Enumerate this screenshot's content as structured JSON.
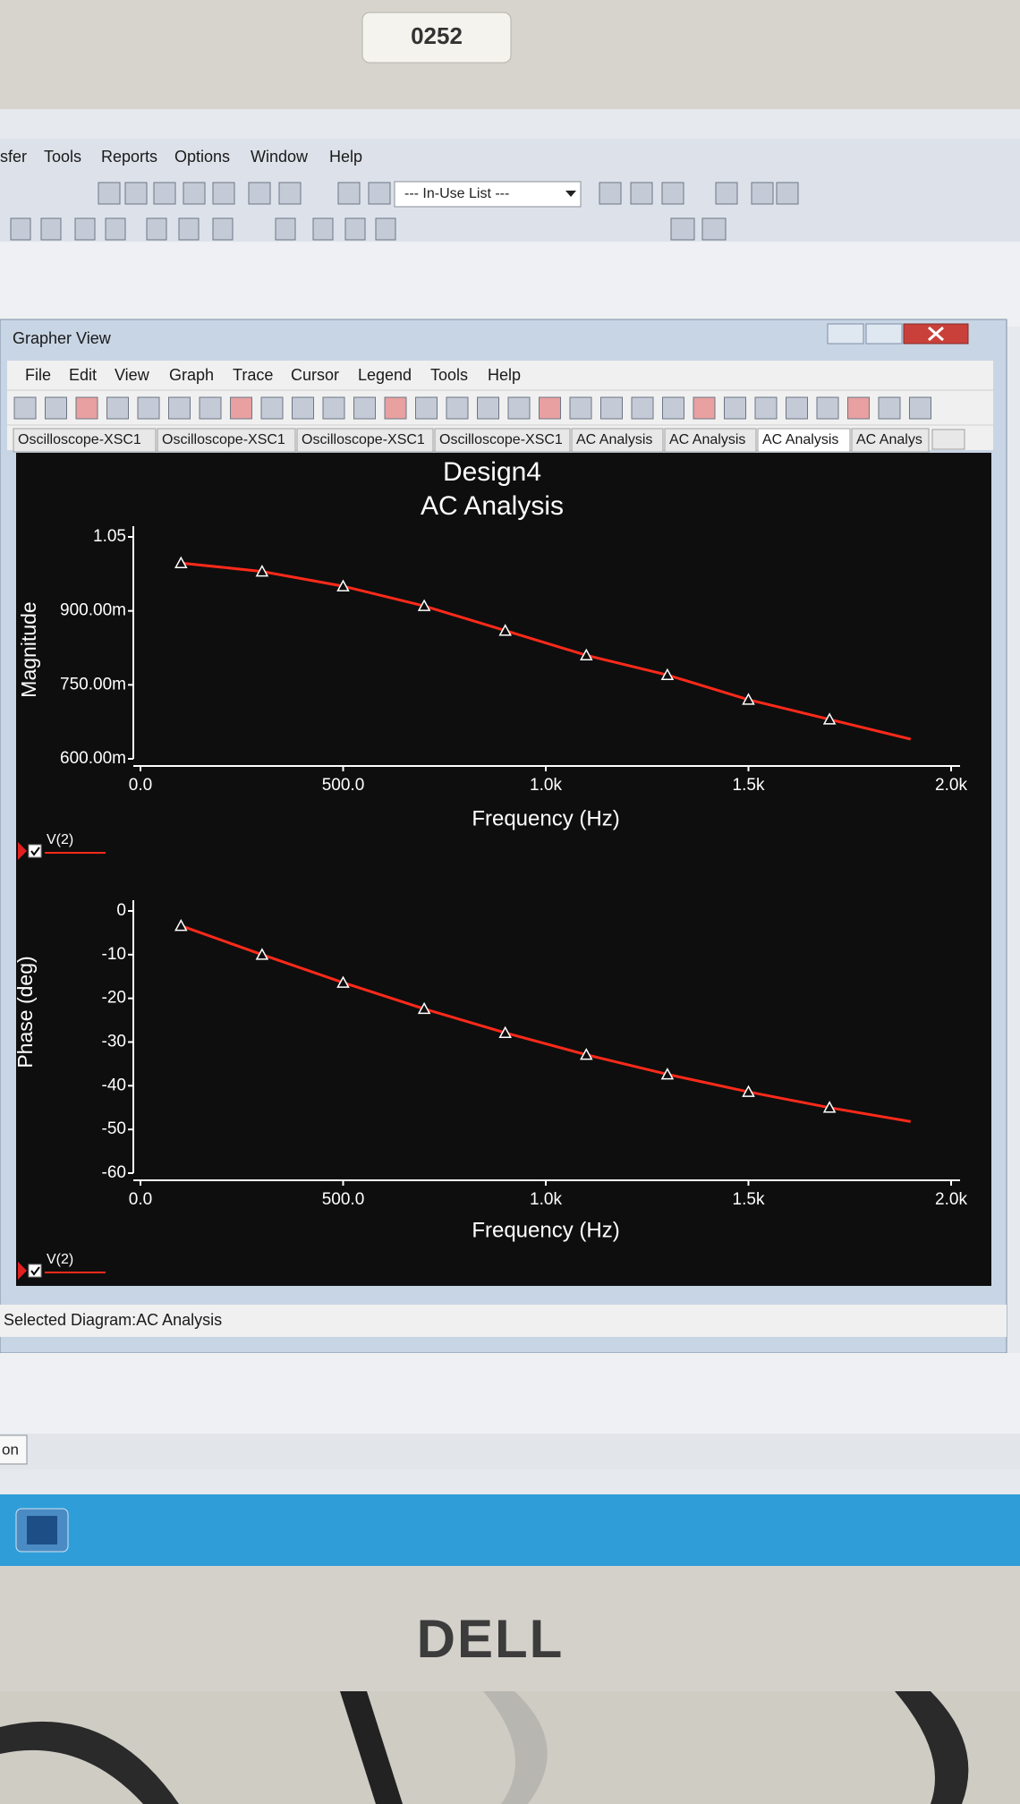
{
  "monitor_label": "0252",
  "main_menu": [
    "sfer",
    "Tools",
    "Reports",
    "Options",
    "Window",
    "Help"
  ],
  "toolbar_combo": "--- In-Use List ---",
  "window": {
    "title": "Grapher View",
    "menu": [
      "File",
      "Edit",
      "View",
      "Graph",
      "Trace",
      "Cursor",
      "Legend",
      "Tools",
      "Help"
    ],
    "tabs": [
      "Oscilloscope-XSC1",
      "Oscilloscope-XSC1",
      "Oscilloscope-XSC1",
      "Oscilloscope-XSC1",
      "AC Analysis",
      "AC Analysis",
      "AC Analysis",
      "AC Analys"
    ],
    "status": "Selected Diagram:AC Analysis"
  },
  "chart_data": [
    {
      "type": "line",
      "title": "Design4",
      "subtitle": "AC Analysis",
      "y_label": "Magnitude",
      "x_label": "Frequency (Hz)",
      "x": [
        100,
        300,
        500,
        700,
        900,
        1100,
        1300,
        1500,
        1700,
        1900
      ],
      "series": [
        {
          "name": "V(2)",
          "color": "#ff2a1a",
          "values": [
            0.997,
            0.98,
            0.95,
            0.91,
            0.86,
            0.81,
            0.77,
            0.72,
            0.68,
            0.64
          ]
        }
      ],
      "xlim": [
        0,
        2000
      ],
      "xticks": [
        {
          "value": 0,
          "label": "0.0"
        },
        {
          "value": 500,
          "label": "500.0"
        },
        {
          "value": 1000,
          "label": "1.0k"
        },
        {
          "value": 1500,
          "label": "1.5k"
        },
        {
          "value": 2000,
          "label": "2.0k"
        }
      ],
      "ylim": [
        0.6,
        1.05
      ],
      "yticks": [
        {
          "value": 0.6,
          "label": "600.00m"
        },
        {
          "value": 0.75,
          "label": "750.00m"
        },
        {
          "value": 0.9,
          "label": "900.00m"
        },
        1.05
      ],
      "grid": false
    },
    {
      "type": "line",
      "y_label": "Phase (deg)",
      "x_label": "Frequency (Hz)",
      "x": [
        100,
        300,
        500,
        700,
        900,
        1100,
        1300,
        1500,
        1700,
        1900
      ],
      "series": [
        {
          "name": "V(2)",
          "color": "#ff2a1a",
          "values": [
            -3.4,
            -10,
            -16.4,
            -22.4,
            -27.9,
            -32.9,
            -37.4,
            -41.4,
            -45,
            -48.2
          ]
        }
      ],
      "xlim": [
        0,
        2000
      ],
      "xticks": [
        {
          "value": 0,
          "label": "0.0"
        },
        {
          "value": 500,
          "label": "500.0"
        },
        {
          "value": 1000,
          "label": "1.0k"
        },
        {
          "value": 1500,
          "label": "1.5k"
        },
        {
          "value": 2000,
          "label": "2.0k"
        }
      ],
      "ylim": [
        -60,
        0
      ],
      "yticks": [
        0,
        -10,
        -20,
        -30,
        -40,
        -50,
        -60
      ],
      "grid": false
    }
  ],
  "taskbar_item": "on",
  "brand": "DELL"
}
